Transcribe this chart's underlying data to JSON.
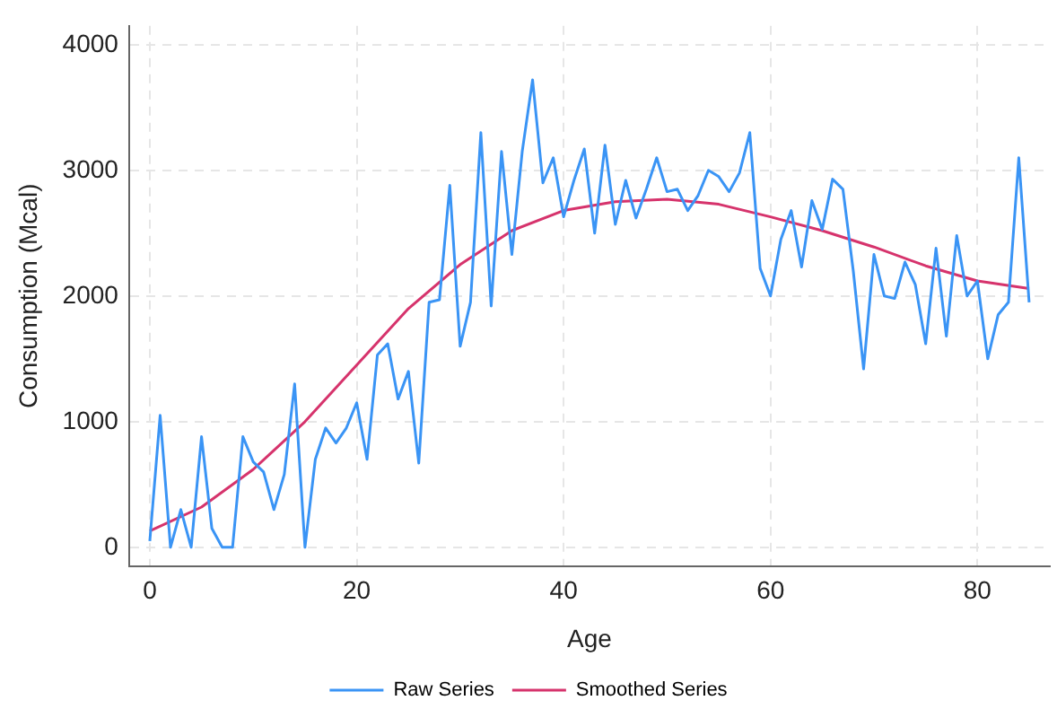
{
  "chart_data": {
    "type": "line",
    "xlabel": "Age",
    "ylabel": "Consumption (Mcal)",
    "xlim": [
      -2,
      87
    ],
    "ylim": [
      -150,
      4150
    ],
    "xticks": [
      0,
      20,
      40,
      60,
      80
    ],
    "yticks": [
      0,
      1000,
      2000,
      3000,
      4000
    ],
    "grid": true,
    "legend": "bottom",
    "marker": "none",
    "line_style": "solid",
    "series": [
      {
        "name": "Raw Series",
        "color": "#3a94f5",
        "x": [
          0,
          1,
          2,
          3,
          4,
          5,
          6,
          7,
          8,
          9,
          10,
          11,
          12,
          13,
          14,
          15,
          16,
          17,
          18,
          19,
          20,
          21,
          22,
          23,
          24,
          25,
          26,
          27,
          28,
          29,
          30,
          31,
          32,
          33,
          34,
          35,
          36,
          37,
          38,
          39,
          40,
          41,
          42,
          43,
          44,
          45,
          46,
          47,
          48,
          49,
          50,
          51,
          52,
          53,
          54,
          55,
          56,
          57,
          58,
          59,
          60,
          61,
          62,
          63,
          64,
          65,
          66,
          67,
          68,
          69,
          70,
          71,
          72,
          73,
          74,
          75,
          76,
          77,
          78,
          79,
          80,
          81,
          82,
          83,
          84,
          85
        ],
        "values": [
          50,
          1050,
          0,
          300,
          0,
          880,
          150,
          0,
          0,
          880,
          680,
          600,
          300,
          580,
          1300,
          0,
          700,
          950,
          830,
          950,
          1150,
          700,
          1530,
          1620,
          1180,
          1400,
          670,
          1950,
          1970,
          2880,
          1600,
          1950,
          3300,
          1920,
          3150,
          2330,
          3150,
          3720,
          2900,
          3100,
          2630,
          2920,
          3170,
          2500,
          3200,
          2570,
          2920,
          2620,
          2850,
          3100,
          2830,
          2850,
          2680,
          2800,
          3000,
          2950,
          2830,
          2980,
          3300,
          2220,
          2000,
          2450,
          2680,
          2230,
          2760,
          2530,
          2930,
          2850,
          2200,
          1420,
          2330,
          2000,
          1980,
          2270,
          2090,
          1620,
          2380,
          1680,
          2480,
          2000,
          2120,
          1500,
          1850,
          1950,
          3100,
          1950
        ]
      },
      {
        "name": "Smoothed Series",
        "color": "#d6336c",
        "x": [
          0,
          5,
          10,
          15,
          20,
          25,
          30,
          35,
          40,
          45,
          50,
          55,
          60,
          65,
          70,
          75,
          80,
          85
        ],
        "values": [
          130,
          320,
          620,
          1000,
          1450,
          1900,
          2250,
          2520,
          2680,
          2750,
          2770,
          2730,
          2630,
          2520,
          2390,
          2240,
          2120,
          2060
        ]
      }
    ]
  }
}
